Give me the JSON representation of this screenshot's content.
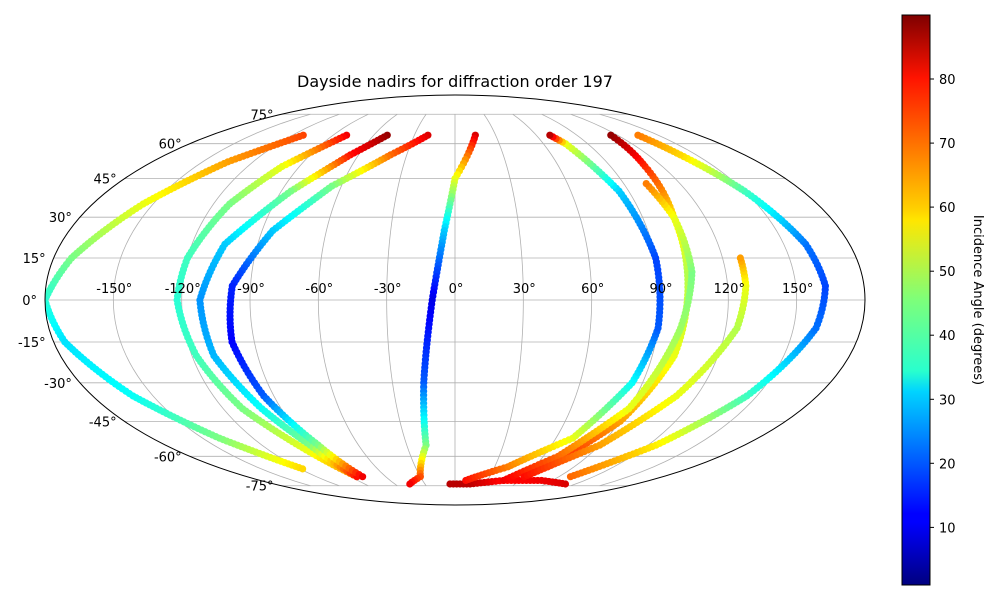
{
  "chart_data": {
    "type": "scatter",
    "title": "Dayside nadirs for diffraction order 197",
    "projection": "mollweide",
    "grid": true,
    "lon_ticks": [
      -150,
      -120,
      -90,
      -60,
      -30,
      0,
      30,
      60,
      90,
      120,
      150
    ],
    "lat_ticks": [
      -75,
      -60,
      -45,
      -30,
      -15,
      0,
      15,
      30,
      45,
      60,
      75
    ],
    "lon_tick_labels": [
      "-150°",
      "-120°",
      "-90°",
      "-60°",
      "-30°",
      "0°",
      "30°",
      "60°",
      "90°",
      "120°",
      "150°"
    ],
    "lat_tick_labels": [
      "-75°",
      "-60°",
      "-45°",
      "-30°",
      "-15°",
      "0°",
      "15°",
      "30°",
      "45°",
      "60°",
      "75°"
    ],
    "colorbar": {
      "label": "Incidence Angle (degrees)",
      "colormap": "jet",
      "range": [
        1,
        90
      ],
      "ticks": [
        10,
        20,
        30,
        40,
        50,
        60,
        70,
        80
      ],
      "tick_labels": [
        "10",
        "20",
        "30",
        "40",
        "50",
        "60",
        "70",
        "80"
      ]
    },
    "series": [
      {
        "points": [
          [
            -112,
            64,
            73
          ],
          [
            -135,
            52,
            65
          ],
          [
            -155,
            35,
            55
          ],
          [
            -172,
            15,
            45
          ],
          [
            -180,
            0,
            38
          ],
          [
            -175,
            -15,
            32
          ],
          [
            -160,
            -35,
            35
          ],
          [
            -140,
            -52,
            45
          ],
          [
            -118,
            -66,
            60
          ]
        ]
      },
      {
        "points": [
          [
            -80,
            64,
            80
          ],
          [
            -100,
            50,
            55
          ],
          [
            -112,
            35,
            45
          ],
          [
            -120,
            15,
            40
          ],
          [
            -122,
            0,
            38
          ],
          [
            -118,
            -20,
            40
          ],
          [
            -110,
            -40,
            45
          ],
          [
            -95,
            -58,
            55
          ],
          [
            -85,
            -70,
            68
          ]
        ]
      },
      {
        "points": [
          [
            -50,
            64,
            88
          ],
          [
            -65,
            55,
            78
          ],
          [
            -85,
            40,
            45
          ],
          [
            -105,
            20,
            30
          ],
          [
            -112,
            0,
            25
          ],
          [
            -110,
            -20,
            28
          ],
          [
            -100,
            -40,
            35
          ],
          [
            -90,
            -55,
            45
          ],
          [
            -85,
            -70,
            78
          ]
        ]
      },
      {
        "points": [
          [
            -20,
            64,
            82
          ],
          [
            -40,
            55,
            70
          ],
          [
            -65,
            42,
            45
          ],
          [
            -85,
            25,
            30
          ],
          [
            -98,
            5,
            15
          ],
          [
            -100,
            -15,
            12
          ],
          [
            -95,
            -35,
            20
          ],
          [
            -85,
            -55,
            45
          ],
          [
            -80,
            -70,
            80
          ]
        ]
      },
      {
        "points": [
          [
            15,
            64,
            82
          ],
          [
            0,
            45,
            55
          ],
          [
            -5,
            25,
            30
          ],
          [
            -10,
            0,
            10
          ],
          [
            -15,
            -30,
            20
          ],
          [
            -18,
            -55,
            45
          ],
          [
            -30,
            -70,
            72
          ],
          [
            -45,
            -74,
            80
          ]
        ]
      },
      {
        "points": [
          [
            -5,
            -74,
            85
          ],
          [
            15,
            -74,
            85
          ],
          [
            45,
            -72,
            78
          ],
          [
            80,
            -72,
            80
          ],
          [
            110,
            -74,
            82
          ]
        ]
      },
      {
        "points": [
          [
            10,
            -72,
            78
          ],
          [
            40,
            -65,
            68
          ],
          [
            70,
            -52,
            55
          ],
          [
            85,
            -30,
            35
          ],
          [
            90,
            -10,
            20
          ],
          [
            90,
            15,
            18
          ],
          [
            85,
            40,
            30
          ],
          [
            75,
            60,
            55
          ],
          [
            70,
            64,
            85
          ]
        ]
      },
      {
        "points": [
          [
            70,
            -65,
            78
          ],
          [
            90,
            -45,
            65
          ],
          [
            100,
            -20,
            55
          ],
          [
            103,
            10,
            50
          ],
          [
            105,
            30,
            58
          ],
          [
            110,
            50,
            75
          ],
          [
            115,
            64,
            88
          ]
        ]
      },
      {
        "points": [
          [
            45,
            -72,
            80
          ],
          [
            70,
            -60,
            70
          ],
          [
            90,
            -40,
            55
          ],
          [
            100,
            -10,
            48
          ],
          [
            105,
            10,
            45
          ],
          [
            105,
            30,
            55
          ],
          [
            102,
            43,
            68
          ]
        ]
      },
      {
        "points": [
          [
            60,
            -70,
            78
          ],
          [
            90,
            -55,
            65
          ],
          [
            110,
            -35,
            55
          ],
          [
            125,
            -10,
            50
          ],
          [
            128,
            5,
            55
          ],
          [
            128,
            15,
            65
          ]
        ]
      },
      {
        "points": [
          [
            100,
            -70,
            70
          ],
          [
            125,
            -55,
            58
          ],
          [
            145,
            -35,
            40
          ],
          [
            160,
            -10,
            22
          ],
          [
            163,
            5,
            18
          ],
          [
            160,
            20,
            22
          ],
          [
            150,
            40,
            40
          ],
          [
            140,
            55,
            60
          ],
          [
            135,
            64,
            68
          ]
        ]
      }
    ]
  }
}
